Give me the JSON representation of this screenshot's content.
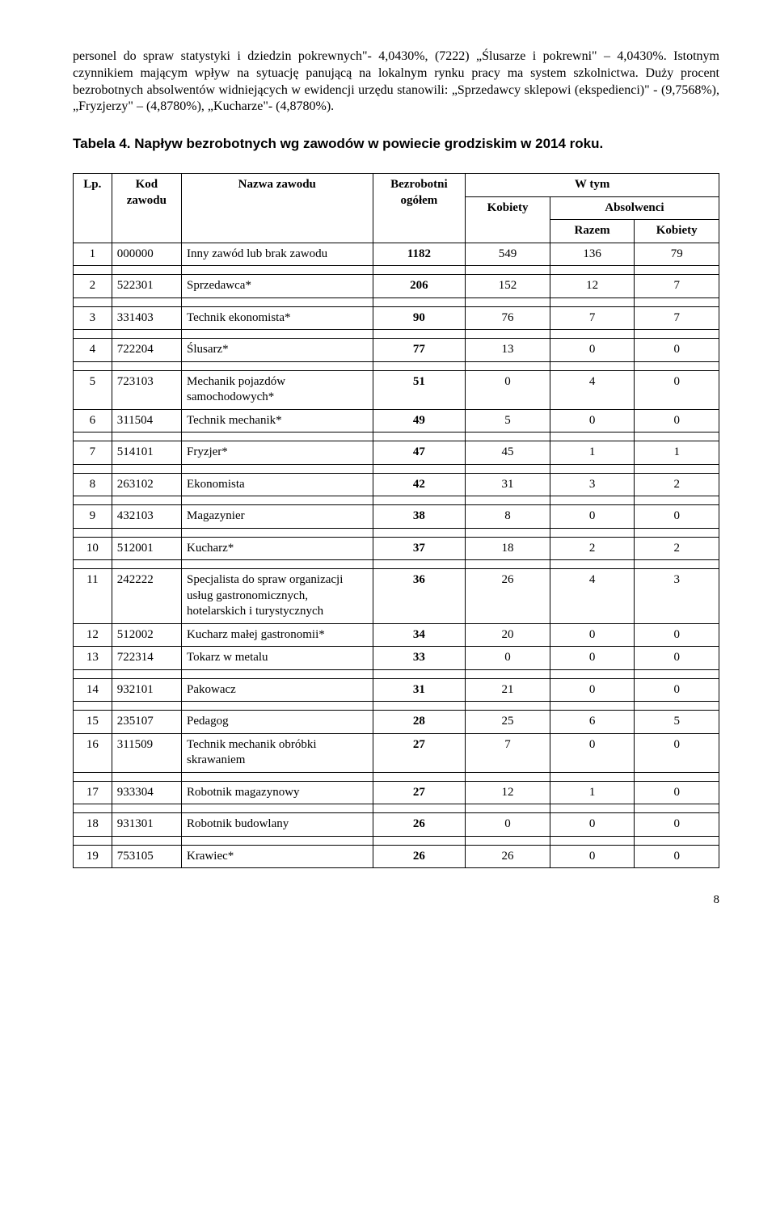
{
  "paragraph": "personel do spraw statystyki i dziedzin pokrewnych\"- 4,0430%, (7222) „Ślusarze i pokrewni\" – 4,0430%.\nIstotnym czynnikiem mającym wpływ na sytuację panującą na lokalnym rynku pracy ma system szkolnictwa. Duży procent bezrobotnych absolwentów widniejących w ewidencji urzędu stanowili: „Sprzedawcy sklepowi (ekspedienci)\" - (9,7568%), „Fryzjerzy\" – (4,8780%), „Kucharze\"- (4,8780%).",
  "table_title": "Tabela 4. Napływ bezrobotnych wg zawodów w powiecie grodziskim w  2014 roku.",
  "header": {
    "lp": "Lp.",
    "kod": "Kod zawodu",
    "nazwa": "Nazwa zawodu",
    "bez": "Bezrobotni ogółem",
    "wtym": "W tym",
    "kobiety": "Kobiety",
    "absolwenci": "Absolwenci",
    "razem": "Razem",
    "kobiety2": "Kobiety"
  },
  "rows": [
    {
      "lp": "1",
      "kod": "000000",
      "nazwa": "Inny zawód lub brak zawodu",
      "bez": "1182",
      "kob": "549",
      "raz": "136",
      "abk": "79"
    },
    {
      "lp": "2",
      "kod": "522301",
      "nazwa": "Sprzedawca*",
      "bez": "206",
      "kob": "152",
      "raz": "12",
      "abk": "7"
    },
    {
      "lp": "3",
      "kod": "331403",
      "nazwa": "Technik ekonomista*",
      "bez": "90",
      "kob": "76",
      "raz": "7",
      "abk": "7"
    },
    {
      "lp": "4",
      "kod": "722204",
      "nazwa": "Ślusarz*",
      "bez": "77",
      "kob": "13",
      "raz": "0",
      "abk": "0"
    },
    {
      "lp": "5",
      "kod": "723103",
      "nazwa": "Mechanik pojazdów samochodowych*",
      "bez": "51",
      "kob": "0",
      "raz": "4",
      "abk": "0"
    },
    {
      "lp": "6",
      "kod": "311504",
      "nazwa": "Technik mechanik*",
      "bez": "49",
      "kob": "5",
      "raz": "0",
      "abk": "0"
    },
    {
      "lp": "7",
      "kod": "514101",
      "nazwa": "Fryzjer*",
      "bez": "47",
      "kob": "45",
      "raz": "1",
      "abk": "1"
    },
    {
      "lp": "8",
      "kod": "263102",
      "nazwa": "Ekonomista",
      "bez": "42",
      "kob": "31",
      "raz": "3",
      "abk": "2"
    },
    {
      "lp": "9",
      "kod": "432103",
      "nazwa": "Magazynier",
      "bez": "38",
      "kob": "8",
      "raz": "0",
      "abk": "0"
    },
    {
      "lp": "10",
      "kod": "512001",
      "nazwa": "Kucharz*",
      "bez": "37",
      "kob": "18",
      "raz": "2",
      "abk": "2"
    },
    {
      "lp": "11",
      "kod": "242222",
      "nazwa": "Specjalista do spraw organizacji usług gastronomicznych, hotelarskich i turystycznych",
      "bez": "36",
      "kob": "26",
      "raz": "4",
      "abk": "3"
    },
    {
      "lp": "12",
      "kod": "512002",
      "nazwa": "Kucharz małej gastronomii*",
      "bez": "34",
      "kob": "20",
      "raz": "0",
      "abk": "0"
    },
    {
      "lp": "13",
      "kod": "722314",
      "nazwa": "Tokarz w metalu",
      "bez": "33",
      "kob": "0",
      "raz": "0",
      "abk": "0"
    },
    {
      "lp": "14",
      "kod": "932101",
      "nazwa": "Pakowacz",
      "bez": "31",
      "kob": "21",
      "raz": "0",
      "abk": "0"
    },
    {
      "lp": "15",
      "kod": "235107",
      "nazwa": "Pedagog",
      "bez": "28",
      "kob": "25",
      "raz": "6",
      "abk": "5"
    },
    {
      "lp": "16",
      "kod": "311509",
      "nazwa": "Technik mechanik obróbki skrawaniem",
      "bez": "27",
      "kob": "7",
      "raz": "0",
      "abk": "0"
    },
    {
      "lp": "17",
      "kod": "933304",
      "nazwa": "Robotnik magazynowy",
      "bez": "27",
      "kob": "12",
      "raz": "1",
      "abk": "0"
    },
    {
      "lp": "18",
      "kod": "931301",
      "nazwa": "Robotnik budowlany",
      "bez": "26",
      "kob": "0",
      "raz": "0",
      "abk": "0"
    },
    {
      "lp": "19",
      "kod": "753105",
      "nazwa": "Krawiec*",
      "bez": "26",
      "kob": "26",
      "raz": "0",
      "abk": "0"
    }
  ],
  "spacer_after": [
    1,
    2,
    3,
    4,
    6,
    7,
    8,
    9,
    10,
    13,
    14,
    16,
    17,
    18
  ],
  "page_number": "8"
}
